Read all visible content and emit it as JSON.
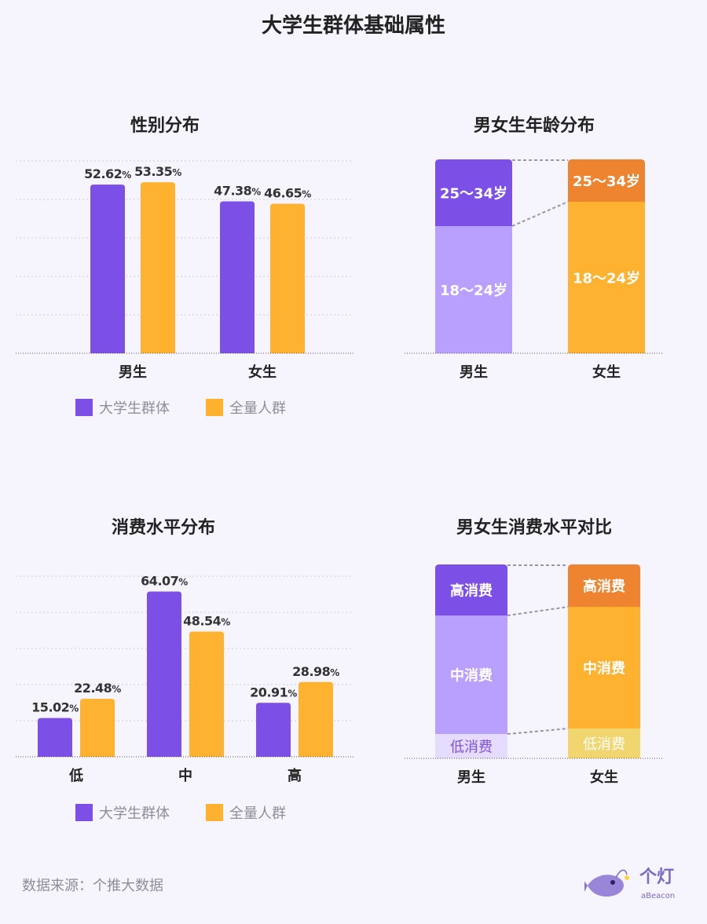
{
  "page_title": "大学生群体基础属性",
  "source": "数据来源：个推大数据",
  "logo": {
    "cn": "个灯",
    "en": "aBeacon"
  },
  "colors": {
    "purple": "#7c4fe6",
    "orange": "#ffb230",
    "light_purple": "#b9a0ff",
    "lightest_purple": "#e6dcff",
    "deep_orange": "#ef8430",
    "pale_yellow": "#f1d66f"
  },
  "chart_data": [
    {
      "id": "gender",
      "type": "bar",
      "title": "性别分布",
      "categories": [
        "男生",
        "女生"
      ],
      "series": [
        {
          "name": "大学生群体",
          "values": [
            52.62,
            47.38
          ],
          "labels": [
            "52.62",
            "47.38"
          ]
        },
        {
          "name": "全量人群",
          "values": [
            53.35,
            46.65
          ],
          "labels": [
            "53.35",
            "46.65"
          ]
        }
      ],
      "unit": "%",
      "grid": true,
      "legend": "bottom"
    },
    {
      "id": "age",
      "type": "bar",
      "stacked": true,
      "title": "男女生年龄分布",
      "categories": [
        "男生",
        "女生"
      ],
      "segments": [
        "18～24岁",
        "25～34岁"
      ]
    },
    {
      "id": "consumption",
      "type": "bar",
      "title": "消费水平分布",
      "categories": [
        "低",
        "中",
        "高"
      ],
      "series": [
        {
          "name": "大学生群体",
          "values": [
            15.02,
            64.07,
            20.91
          ],
          "labels": [
            "15.02",
            "64.07",
            "20.91"
          ]
        },
        {
          "name": "全量人群",
          "values": [
            22.48,
            48.54,
            28.98
          ],
          "labels": [
            "22.48",
            "48.54",
            "28.98"
          ]
        }
      ],
      "unit": "%",
      "grid": true,
      "legend": "bottom"
    },
    {
      "id": "consumption_compare",
      "type": "bar",
      "stacked": true,
      "title": "男女生消费水平对比",
      "categories": [
        "男生",
        "女生"
      ],
      "segments": [
        "低消费",
        "中消费",
        "高消费"
      ]
    }
  ]
}
